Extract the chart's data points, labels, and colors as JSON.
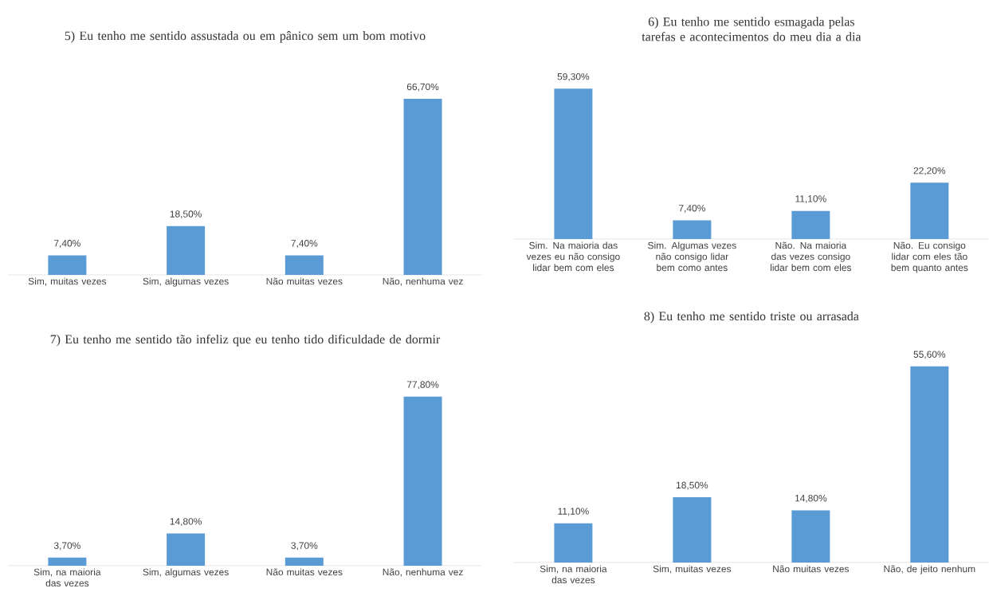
{
  "chart_data": [
    {
      "type": "bar",
      "title": "5) Eu tenho me sentido assustada ou em pânico sem um bom motivo",
      "categories": [
        "Sim, muitas vezes",
        "Sim, algumas vezes",
        "Não muitas vezes",
        "Não, nenhuma vez"
      ],
      "values": [
        7.4,
        18.5,
        7.4,
        66.7
      ],
      "value_labels": [
        "7,40%",
        "18,50%",
        "7,40%",
        "66,70%"
      ],
      "color": "#5b9bd5"
    },
    {
      "type": "bar",
      "title": "6) Eu tenho me sentido esmagada pelas tarefas e acontecimentos do meu dia a dia",
      "categories": [
        "Sim. Na maioria das vezes eu não consigo lidar bem com eles",
        "Sim. Algumas vezes não consigo lidar bem como antes",
        "Não. Na maioria das vezes consigo lidar bem com eles",
        "Não. Eu consigo lidar com eles tão bem quanto antes"
      ],
      "values": [
        59.3,
        7.4,
        11.1,
        22.2
      ],
      "value_labels": [
        "59,30%",
        "7,40%",
        "11,10%",
        "22,20%"
      ],
      "color": "#5b9bd5"
    },
    {
      "type": "bar",
      "title": "7) Eu tenho me sentido tão infeliz que eu tenho tido dificuldade de dormir",
      "categories": [
        "Sim, na maioria das vezes",
        "Sim, algumas vezes",
        "Não muitas vezes",
        "Não, nenhuma vez"
      ],
      "values": [
        3.7,
        14.8,
        3.7,
        77.8
      ],
      "value_labels": [
        "3,70%",
        "14,80%",
        "3,70%",
        "77,80%"
      ],
      "color": "#5b9bd5"
    },
    {
      "type": "bar",
      "title": "8) Eu tenho me sentido triste ou arrasada",
      "categories": [
        "Sim, na maioria das vezes",
        "Sim, muitas vezes",
        "Não muitas vezes",
        "Não, de jeito nenhum"
      ],
      "values": [
        11.1,
        18.5,
        14.8,
        55.6
      ],
      "value_labels": [
        "11,10%",
        "18,50%",
        "14,80%",
        "55,60%"
      ],
      "color": "#5b9bd5"
    }
  ]
}
